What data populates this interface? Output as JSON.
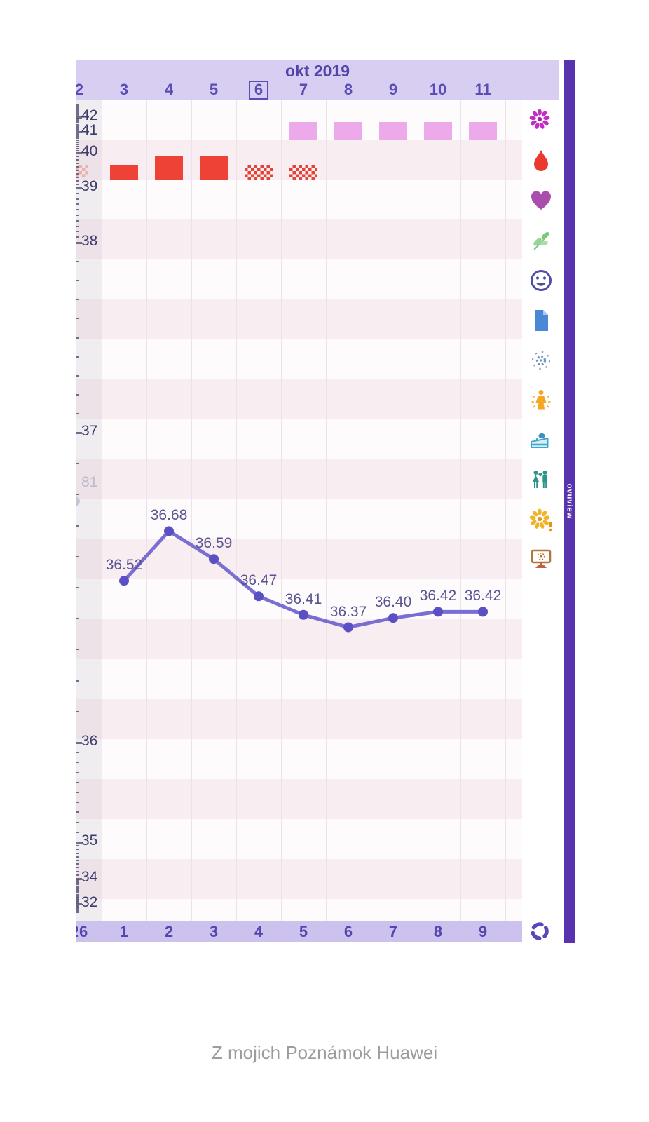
{
  "app": {
    "ribbon_text": "ovuview"
  },
  "header": {
    "month_title": "okt 2019",
    "dates": [
      "2",
      "3",
      "4",
      "5",
      "6",
      "7",
      "8",
      "9",
      "10",
      "11"
    ],
    "today_date": "6"
  },
  "bottom_axis": {
    "cycle_days": [
      "26",
      "1",
      "2",
      "3",
      "4",
      "5",
      "6",
      "7",
      "8",
      "9"
    ]
  },
  "chart_data": {
    "type": "line",
    "title": "okt 2019",
    "x_dates": [
      "2",
      "3",
      "4",
      "5",
      "6",
      "7",
      "8",
      "9",
      "10",
      "11"
    ],
    "x_cycle_days": [
      "26",
      "1",
      "2",
      "3",
      "4",
      "5",
      "6",
      "7",
      "8",
      "9"
    ],
    "today_date": "6",
    "series": [
      {
        "name": "basal-body-temperature",
        "values": [
          null,
          36.52,
          36.68,
          36.59,
          36.47,
          36.41,
          36.37,
          36.4,
          36.42,
          36.42
        ]
      }
    ],
    "point_labels": [
      null,
      "36.52",
      "36.68",
      "36.59",
      "36.47",
      "36.41",
      "36.37",
      "36.40",
      "36.42",
      "36.42"
    ],
    "previous_cycle_point_label": "81",
    "y_axis_tick_labels": [
      "42",
      "41",
      "40",
      "39",
      "38",
      "37",
      "36",
      "35",
      "34",
      "32"
    ],
    "y_axis_scale": "fisheye-zoom",
    "y_axis_range_visible": [
      32,
      42
    ],
    "grid": "vertical-day-columns",
    "legend_position": "right-icon-column"
  },
  "symptoms": {
    "mucus_row": {
      "icon": "flower-magenta-icon",
      "marked_dates": [
        "7",
        "8",
        "9",
        "10",
        "11"
      ]
    },
    "menstruation_row": {
      "icon": "blood-drop-icon",
      "entries": [
        {
          "date": "2",
          "style": "hatched-faded",
          "partial": true
        },
        {
          "date": "3",
          "style": "solid-small"
        },
        {
          "date": "4",
          "style": "solid-large"
        },
        {
          "date": "5",
          "style": "solid-large"
        },
        {
          "date": "6",
          "style": "hatched"
        },
        {
          "date": "7",
          "style": "hatched"
        }
      ]
    }
  },
  "sidebar_icons": [
    "flower-magenta-icon",
    "blood-drop-icon",
    "heart-icon",
    "leaves-icon",
    "smiley-icon",
    "note-icon",
    "burst-icon",
    "woman-icon",
    "cake-icon",
    "couple-icon",
    "flower-yellow-icon",
    "monitor-icon"
  ],
  "controls": {
    "refresh_icon": "cycle-refresh-icon"
  },
  "footer": {
    "caption": "Z mojich Poznámok Huawei"
  },
  "colors": {
    "header_band": "#d7cef2",
    "bottom_band": "#cdc2ee",
    "accent_purple": "#5b4db4",
    "ribbon_purple": "#5734ad",
    "line": "#7a6ed2",
    "point": "#5a50c4",
    "menses_red": "#ee4237",
    "mucus_pink": "#edaaeb",
    "stripe_pink": "#f8edf0"
  }
}
